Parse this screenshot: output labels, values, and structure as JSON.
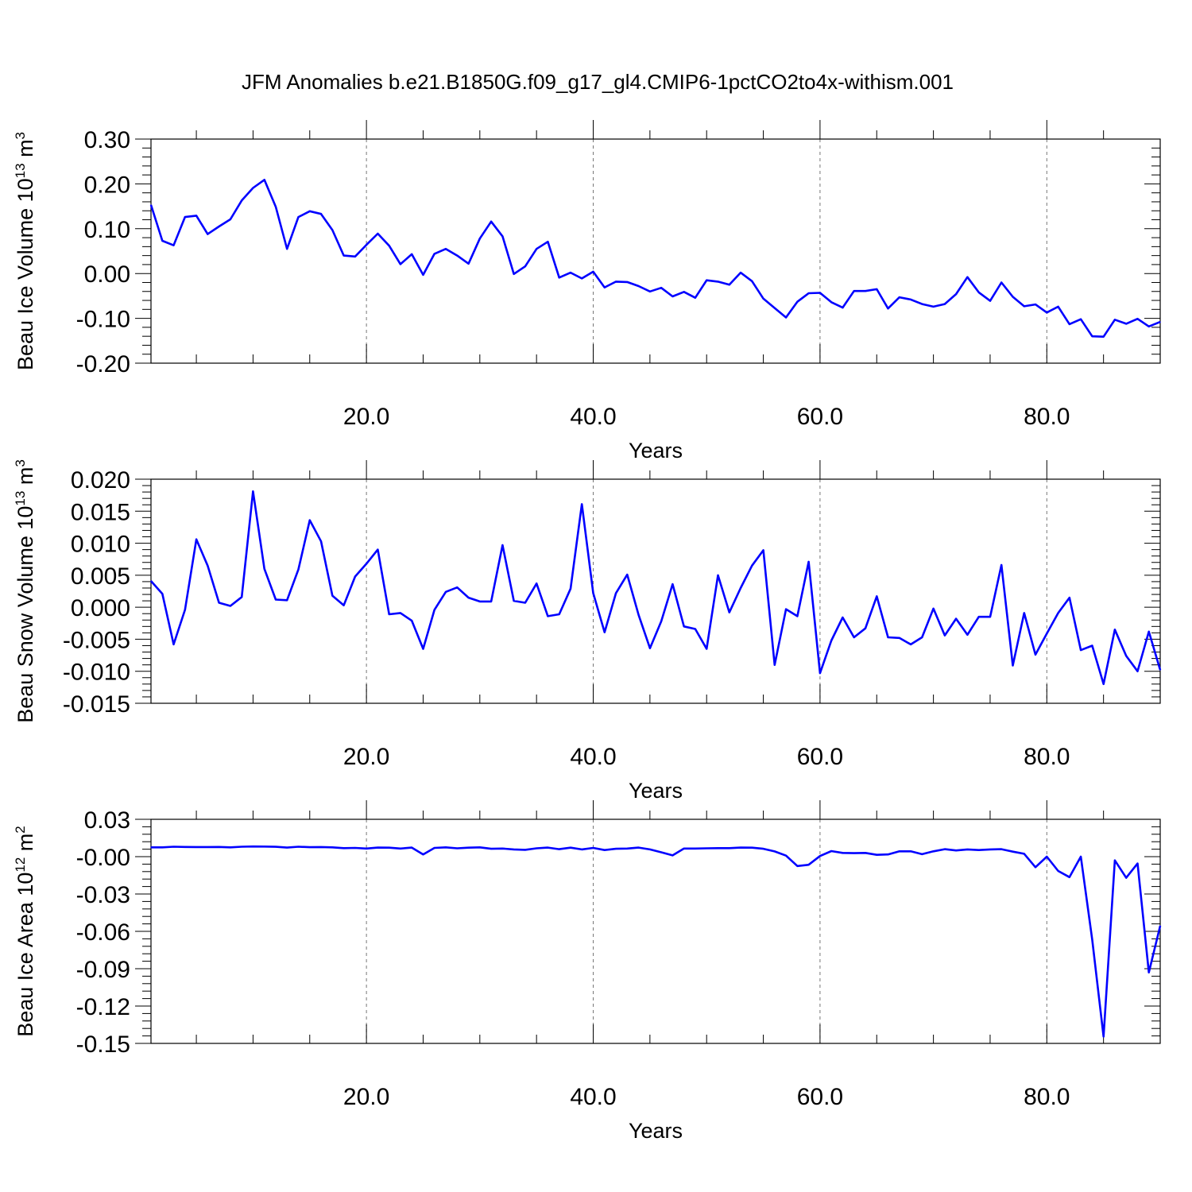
{
  "title": "JFM Anomalies b.e21.B1850G.f09_g17_gl4.CMIP6-1pctCO2to4x-withism.001",
  "chart_data": [
    {
      "type": "line",
      "title": "",
      "xlabel": "Years",
      "ylabel_main": "Beau Ice Volume 10",
      "ylabel_sup1": "13",
      "ylabel_mid": " m",
      "ylabel_sup2": "3",
      "xlim": [
        1,
        90
      ],
      "ylim": [
        -0.2,
        0.3
      ],
      "xticks": [
        20,
        40,
        60,
        80
      ],
      "xtick_labels": [
        "20.0",
        "40.0",
        "60.0",
        "80.0"
      ],
      "yticks": [
        0.3,
        0.2,
        0.1,
        0.0,
        -0.1,
        -0.2
      ],
      "ytick_labels": [
        "0.30",
        "0.20",
        "0.10",
        "0.00",
        "-0.10",
        "-0.20"
      ],
      "grid": "dashed vertical at major x ticks",
      "line_color": "#0000ff",
      "series": [
        {
          "x": [
            1,
            2,
            3,
            4,
            5,
            6,
            7,
            8,
            9,
            10,
            11,
            12,
            13,
            14,
            15,
            16,
            17,
            18,
            19,
            20,
            21,
            22,
            23,
            24,
            25,
            26,
            27,
            28,
            29,
            30,
            31,
            32,
            33,
            34,
            35,
            36,
            37,
            38,
            39,
            40,
            41,
            42,
            43,
            44,
            45,
            46,
            47,
            48,
            49,
            50,
            51,
            52,
            53,
            54,
            55,
            56,
            57,
            58,
            59,
            60,
            61,
            62,
            63,
            64,
            65,
            66,
            67,
            68,
            69,
            70,
            71,
            72,
            73,
            74,
            75,
            76,
            77,
            78,
            79,
            80,
            81,
            82,
            83,
            84,
            85,
            86,
            87,
            88,
            89,
            90
          ],
          "y": [
            0.153,
            0.073,
            0.063,
            0.126,
            0.129,
            0.088,
            0.105,
            0.121,
            0.163,
            0.191,
            0.209,
            0.149,
            0.055,
            0.126,
            0.139,
            0.133,
            0.097,
            0.04,
            0.038,
            0.064,
            0.089,
            0.062,
            0.021,
            0.043,
            -0.003,
            0.044,
            0.055,
            0.04,
            0.022,
            0.078,
            0.116,
            0.083,
            -0.001,
            0.016,
            0.055,
            0.071,
            -0.009,
            0.002,
            -0.011,
            0.004,
            -0.031,
            -0.018,
            -0.019,
            -0.028,
            -0.04,
            -0.032,
            -0.051,
            -0.041,
            -0.054,
            -0.015,
            -0.018,
            -0.025,
            0.002,
            -0.017,
            -0.056,
            -0.077,
            -0.098,
            -0.063,
            -0.044,
            -0.043,
            -0.064,
            -0.076,
            -0.039,
            -0.039,
            -0.035,
            -0.078,
            -0.053,
            -0.058,
            -0.068,
            -0.074,
            -0.068,
            -0.046,
            -0.008,
            -0.042,
            -0.061,
            -0.02,
            -0.052,
            -0.073,
            -0.069,
            -0.087,
            -0.074,
            -0.113,
            -0.102,
            -0.14,
            -0.141,
            -0.103,
            -0.112,
            -0.101,
            -0.118,
            -0.108
          ]
        }
      ]
    },
    {
      "type": "line",
      "title": "",
      "xlabel": "Years",
      "ylabel_main": "Beau Snow Volume 10",
      "ylabel_sup1": "13",
      "ylabel_mid": " m",
      "ylabel_sup2": "3",
      "xlim": [
        1,
        90
      ],
      "ylim": [
        -0.015,
        0.02
      ],
      "xticks": [
        20,
        40,
        60,
        80
      ],
      "xtick_labels": [
        "20.0",
        "40.0",
        "60.0",
        "80.0"
      ],
      "yticks": [
        0.02,
        0.015,
        0.01,
        0.005,
        0.0,
        -0.005,
        -0.01,
        -0.015
      ],
      "ytick_labels": [
        "0.020",
        "0.015",
        "0.010",
        "0.005",
        "0.000",
        "-0.005",
        "-0.010",
        "-0.015"
      ],
      "grid": "dashed vertical at major x ticks",
      "line_color": "#0000ff",
      "series": [
        {
          "x": [
            1,
            2,
            3,
            4,
            5,
            6,
            7,
            8,
            9,
            10,
            11,
            12,
            13,
            14,
            15,
            16,
            17,
            18,
            19,
            20,
            21,
            22,
            23,
            24,
            25,
            26,
            27,
            28,
            29,
            30,
            31,
            32,
            33,
            34,
            35,
            36,
            37,
            38,
            39,
            40,
            41,
            42,
            43,
            44,
            45,
            46,
            47,
            48,
            49,
            50,
            51,
            52,
            53,
            54,
            55,
            56,
            57,
            58,
            59,
            60,
            61,
            62,
            63,
            64,
            65,
            66,
            67,
            68,
            69,
            70,
            71,
            72,
            73,
            74,
            75,
            76,
            77,
            78,
            79,
            80,
            81,
            82,
            83,
            84,
            85,
            86,
            87,
            88,
            89,
            90
          ],
          "y": [
            0.0041,
            0.0021,
            -0.0058,
            -0.0004,
            0.0106,
            0.0065,
            0.0007,
            0.0002,
            0.0016,
            0.0181,
            0.006,
            0.0012,
            0.0011,
            0.0059,
            0.0136,
            0.0103,
            0.0018,
            0.0003,
            0.0048,
            0.0068,
            0.009,
            -0.0011,
            -0.0009,
            -0.0021,
            -0.0065,
            -0.0004,
            0.0024,
            0.0031,
            0.0015,
            0.0009,
            0.0009,
            0.0097,
            0.001,
            0.0007,
            0.0037,
            -0.0014,
            -0.0011,
            0.0029,
            0.0161,
            0.0022,
            -0.0039,
            0.0022,
            0.0051,
            -0.0012,
            -0.0064,
            -0.0022,
            0.0036,
            -0.003,
            -0.0034,
            -0.0065,
            0.005,
            -0.0008,
            0.003,
            0.0065,
            0.0089,
            -0.009,
            -0.0003,
            -0.0014,
            0.0071,
            -0.0103,
            -0.0052,
            -0.0016,
            -0.0047,
            -0.0033,
            0.0017,
            -0.0047,
            -0.0048,
            -0.0058,
            -0.0047,
            -0.0002,
            -0.0044,
            -0.0018,
            -0.0043,
            -0.0015,
            -0.0015,
            0.0066,
            -0.0091,
            -0.0009,
            -0.0074,
            -0.0041,
            -0.0009,
            0.0015,
            -0.0067,
            -0.006,
            -0.012,
            -0.0035,
            -0.0076,
            -0.01,
            -0.0038,
            -0.0098
          ]
        }
      ]
    },
    {
      "type": "line",
      "title": "",
      "xlabel": "Years",
      "ylabel_main": "Beau Ice Area 10",
      "ylabel_sup1": "12",
      "ylabel_mid": " m",
      "ylabel_sup2": "2",
      "xlim": [
        1,
        90
      ],
      "ylim": [
        -0.15,
        0.03
      ],
      "xticks": [
        20,
        40,
        60,
        80
      ],
      "xtick_labels": [
        "20.0",
        "40.0",
        "60.0",
        "80.0"
      ],
      "yticks": [
        0.03,
        0.0,
        -0.03,
        -0.06,
        -0.09,
        -0.12,
        -0.15
      ],
      "ytick_labels": [
        "0.03",
        "-0.00",
        "-0.03",
        "-0.06",
        "-0.09",
        "-0.12",
        "-0.15"
      ],
      "grid": "dashed vertical at major x ticks",
      "line_color": "#0000ff",
      "series": [
        {
          "x": [
            1,
            2,
            3,
            4,
            5,
            6,
            7,
            8,
            9,
            10,
            11,
            12,
            13,
            14,
            15,
            16,
            17,
            18,
            19,
            20,
            21,
            22,
            23,
            24,
            25,
            26,
            27,
            28,
            29,
            30,
            31,
            32,
            33,
            34,
            35,
            36,
            37,
            38,
            39,
            40,
            41,
            42,
            43,
            44,
            45,
            46,
            47,
            48,
            49,
            50,
            51,
            52,
            53,
            54,
            55,
            56,
            57,
            58,
            59,
            60,
            61,
            62,
            63,
            64,
            65,
            66,
            67,
            68,
            69,
            70,
            71,
            72,
            73,
            74,
            75,
            76,
            77,
            78,
            79,
            80,
            81,
            82,
            83,
            84,
            85,
            86,
            87,
            88,
            89,
            90
          ],
          "y": [
            0.0075,
            0.0075,
            0.008,
            0.0078,
            0.0077,
            0.0077,
            0.0078,
            0.0075,
            0.008,
            0.0082,
            0.0081,
            0.0079,
            0.0073,
            0.008,
            0.0076,
            0.0077,
            0.0075,
            0.0068,
            0.007,
            0.0065,
            0.0073,
            0.0072,
            0.0065,
            0.0073,
            0.0018,
            0.007,
            0.0075,
            0.0067,
            0.0072,
            0.0075,
            0.0063,
            0.0065,
            0.0058,
            0.0055,
            0.0067,
            0.0073,
            0.006,
            0.0072,
            0.0058,
            0.007,
            0.0053,
            0.0063,
            0.0065,
            0.0073,
            0.0058,
            0.0035,
            0.001,
            0.0065,
            0.0065,
            0.0067,
            0.0068,
            0.0068,
            0.0073,
            0.0072,
            0.0063,
            0.0042,
            0.0008,
            -0.0075,
            -0.0065,
            0.0005,
            0.0045,
            0.003,
            0.0028,
            0.003,
            0.0015,
            0.0018,
            0.0043,
            0.0043,
            0.002,
            0.0043,
            0.006,
            0.005,
            0.0058,
            0.0053,
            0.0058,
            0.006,
            0.004,
            0.0023,
            -0.0085,
            0.0,
            -0.0115,
            -0.0165,
            0.0,
            -0.0665,
            -0.1445,
            -0.003,
            -0.017,
            -0.0055,
            -0.093,
            -0.0555
          ]
        }
      ]
    }
  ]
}
